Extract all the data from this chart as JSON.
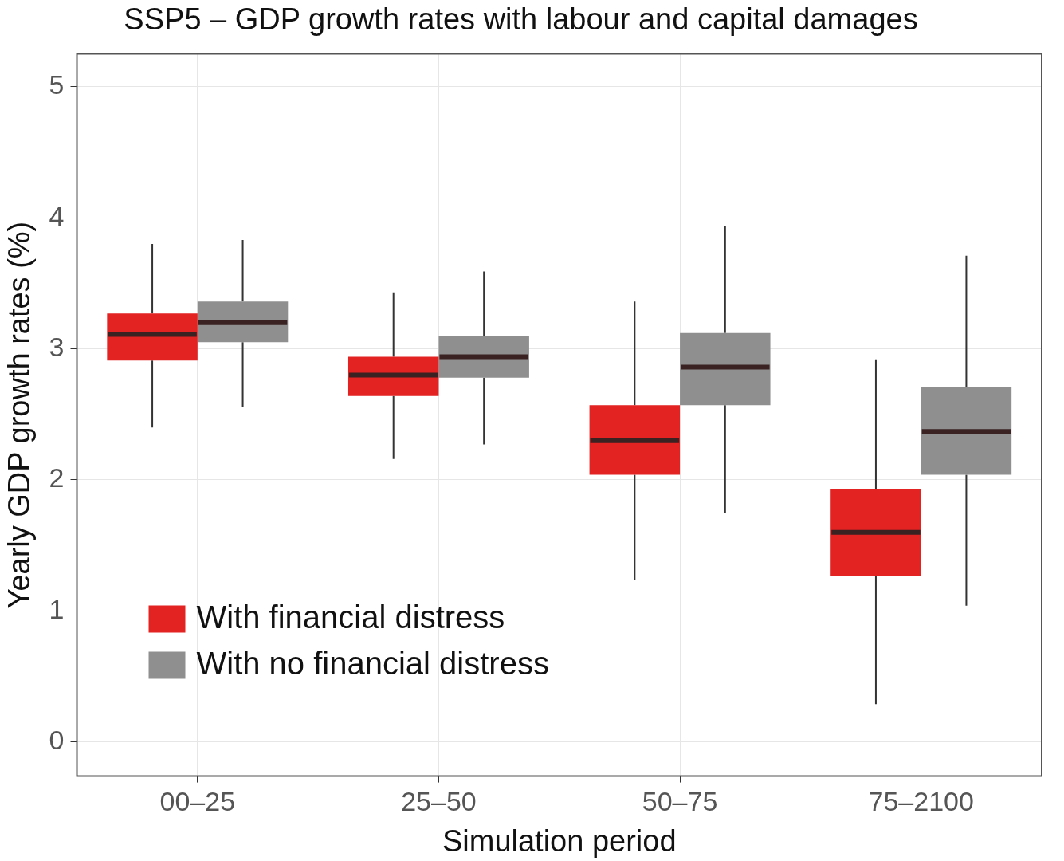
{
  "chart_data": {
    "type": "box",
    "title": "SSP5 – GDP growth rates with labour and capital damages",
    "xlabel": "Simulation period",
    "ylabel": "Yearly GDP growth rates (%)",
    "categories": [
      "00–25",
      "25–50",
      "50–75",
      "75–2100"
    ],
    "series": [
      {
        "name": "With financial distress",
        "color": "#e32222",
        "boxes": [
          {
            "low": 2.4,
            "q1": 2.91,
            "median": 3.11,
            "q3": 3.27,
            "high": 3.8
          },
          {
            "low": 2.16,
            "q1": 2.64,
            "median": 2.8,
            "q3": 2.94,
            "high": 3.43
          },
          {
            "low": 1.24,
            "q1": 2.04,
            "median": 2.3,
            "q3": 2.57,
            "high": 3.36
          },
          {
            "low": 0.29,
            "q1": 1.27,
            "median": 1.6,
            "q3": 1.93,
            "high": 2.92
          }
        ]
      },
      {
        "name": "With no financial distress",
        "color": "#8f8f8f",
        "boxes": [
          {
            "low": 2.56,
            "q1": 3.05,
            "median": 3.2,
            "q3": 3.36,
            "high": 3.83
          },
          {
            "low": 2.27,
            "q1": 2.78,
            "median": 2.94,
            "q3": 3.1,
            "high": 3.59
          },
          {
            "low": 1.75,
            "q1": 2.57,
            "median": 2.86,
            "q3": 3.12,
            "high": 3.94
          },
          {
            "low": 1.04,
            "q1": 2.04,
            "median": 2.37,
            "q3": 2.71,
            "high": 3.71
          }
        ]
      }
    ],
    "ylim": [
      -0.26,
      5.25
    ],
    "yticks": [
      0,
      1,
      2,
      3,
      4,
      5
    ],
    "grid": true,
    "legend": "bottom left"
  }
}
